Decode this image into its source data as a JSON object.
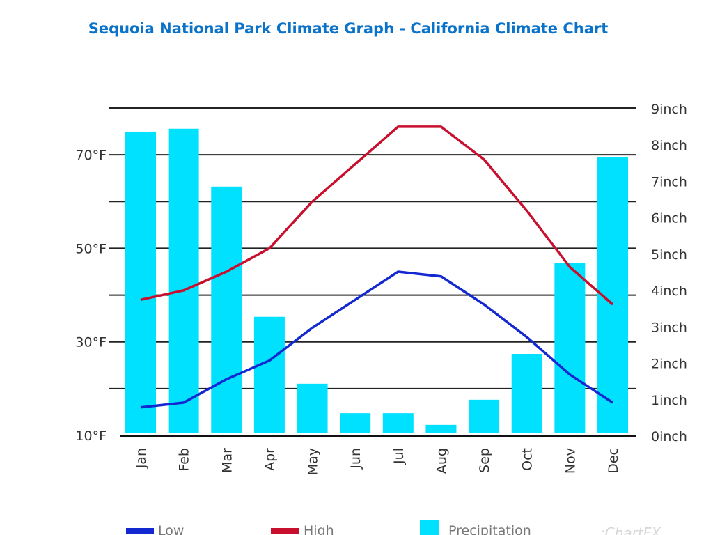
{
  "chart_data": {
    "type": "bar+line",
    "title": "Sequoia National Park Climate Graph - California Climate Chart",
    "categories": [
      "Jan",
      "Feb",
      "Mar",
      "Apr",
      "May",
      "Jun",
      "Jul",
      "Aug",
      "Sep",
      "Oct",
      "Nov",
      "Dec"
    ],
    "y_left": {
      "ticks": [
        "10°F",
        "30°F",
        "50°F",
        "70°F"
      ],
      "tick_values": [
        10,
        30,
        50,
        70
      ],
      "range": [
        10,
        80
      ],
      "gridlines": [
        20,
        30,
        40,
        50,
        60,
        70,
        80
      ]
    },
    "y_right": {
      "ticks": [
        "0inch",
        "1inch",
        "2inch",
        "3inch",
        "4inch",
        "5inch",
        "6inch",
        "7inch",
        "8inch",
        "9inch"
      ],
      "tick_values": [
        0,
        1,
        2,
        3,
        4,
        5,
        6,
        7,
        8,
        9
      ],
      "range": [
        0,
        9
      ]
    },
    "series": [
      {
        "name": "Low",
        "kind": "line",
        "axis": "left",
        "color": "#1428d2",
        "values": [
          16,
          17,
          22,
          26,
          33,
          39,
          45,
          44,
          38,
          31,
          23,
          17
        ]
      },
      {
        "name": "High",
        "kind": "line",
        "axis": "left",
        "color": "#c8102e",
        "values": [
          39,
          41,
          45,
          50,
          60,
          68,
          76,
          76,
          69,
          58,
          46,
          38
        ]
      },
      {
        "name": "Precipitation",
        "kind": "bar",
        "axis": "right",
        "color": "#00e0ff",
        "values": [
          8.35,
          8.43,
          6.84,
          3.26,
          1.42,
          0.61,
          0.61,
          0.29,
          0.98,
          2.24,
          4.73,
          7.64
        ]
      }
    ],
    "legend": [
      "Low",
      "High",
      "Precipitation"
    ],
    "legend_position": "bottom",
    "grid": true
  },
  "watermark": ":ChartFX"
}
